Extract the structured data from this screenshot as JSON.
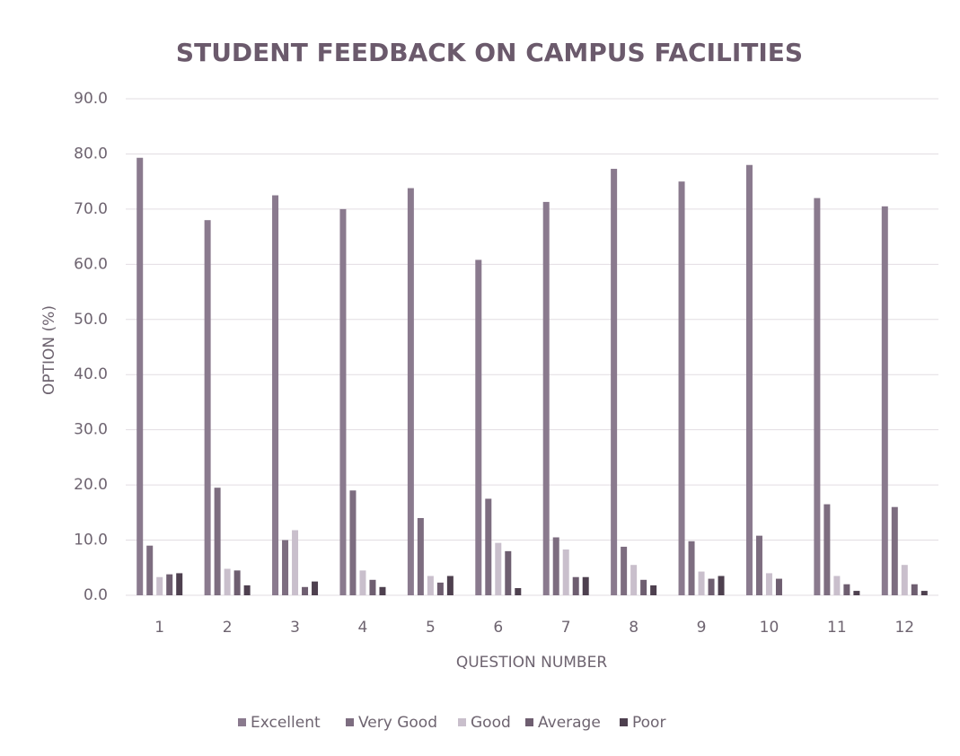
{
  "chart_data": {
    "type": "bar",
    "title": "STUDENT FEEDBACK ON CAMPUS FACILITIES",
    "x_label": "QUESTION NUMBER",
    "y_label": "OPTION (%)",
    "categories": [
      "1",
      "2",
      "3",
      "4",
      "5",
      "6",
      "7",
      "8",
      "9",
      "10",
      "11",
      "12"
    ],
    "series": [
      {
        "name": "Excellent",
        "color": "#8a7a8e",
        "values": [
          79.3,
          68.0,
          72.5,
          70.0,
          73.8,
          60.8,
          71.3,
          77.3,
          75.0,
          78.0,
          72.0,
          70.5
        ]
      },
      {
        "name": "Very Good",
        "color": "#7d6d80",
        "values": [
          9.0,
          19.5,
          10.0,
          19.0,
          14.0,
          17.5,
          10.5,
          8.8,
          9.8,
          10.8,
          16.5,
          16.0
        ]
      },
      {
        "name": "Good",
        "color": "#c9bfcc",
        "values": [
          3.3,
          4.8,
          11.8,
          4.5,
          3.5,
          9.5,
          8.3,
          5.5,
          4.3,
          4.0,
          3.5,
          5.5
        ]
      },
      {
        "name": "Average",
        "color": "#6e5e70",
        "values": [
          3.8,
          4.5,
          1.5,
          2.8,
          2.3,
          8.0,
          3.3,
          2.8,
          3.0,
          3.0,
          2.0,
          2.0
        ]
      },
      {
        "name": "Poor",
        "color": "#4e404f",
        "values": [
          4.0,
          1.8,
          2.5,
          1.5,
          3.5,
          1.3,
          3.3,
          1.8,
          3.5,
          0,
          0.8,
          0.8
        ]
      }
    ],
    "ylim": [
      0,
      90
    ],
    "yticks": [
      {
        "value": 0,
        "label": "0.0"
      },
      {
        "value": 10,
        "label": "10.0"
      },
      {
        "value": 20,
        "label": "20.0"
      },
      {
        "value": 30,
        "label": "30.0"
      },
      {
        "value": 40,
        "label": "40.0"
      },
      {
        "value": 50,
        "label": "50.0"
      },
      {
        "value": 60,
        "label": "60.0"
      },
      {
        "value": 70,
        "label": "70.0"
      },
      {
        "value": 80,
        "label": "80.0"
      },
      {
        "value": 90,
        "label": "90.0"
      }
    ],
    "grid": true,
    "legend": "bottom"
  }
}
